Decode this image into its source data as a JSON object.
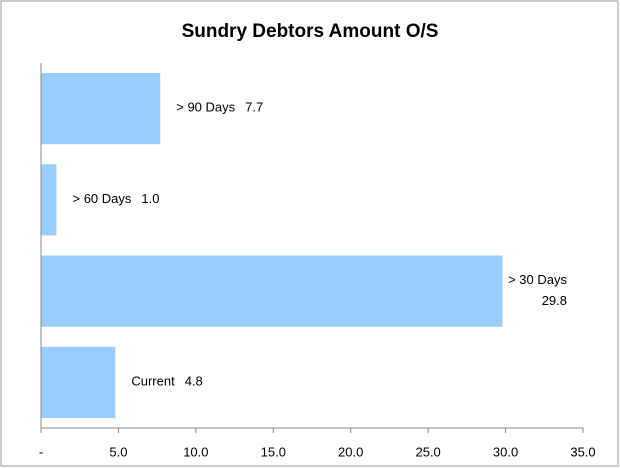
{
  "chart_data": {
    "type": "bar",
    "orientation": "horizontal",
    "title": "Sundry Debtors Amount O/S",
    "categories": [
      "> 90 Days",
      "> 60 Days",
      "> 30 Days",
      "Current"
    ],
    "values": [
      7.7,
      1.0,
      29.8,
      4.8
    ],
    "value_labels": [
      "7.7",
      "1.0",
      "29.8",
      "4.8"
    ],
    "color": "#99ccff",
    "xlim": [
      0,
      35
    ],
    "xticks": [
      {
        "value": 0,
        "label": "-"
      },
      {
        "value": 5,
        "label": "5.0"
      },
      {
        "value": 10,
        "label": "10.0"
      },
      {
        "value": 15,
        "label": "15.0"
      },
      {
        "value": 20,
        "label": "20.0"
      },
      {
        "value": 25,
        "label": "25.0"
      },
      {
        "value": 30,
        "label": "30.0"
      },
      {
        "value": 35,
        "label": "35.0"
      }
    ],
    "grid": false
  }
}
